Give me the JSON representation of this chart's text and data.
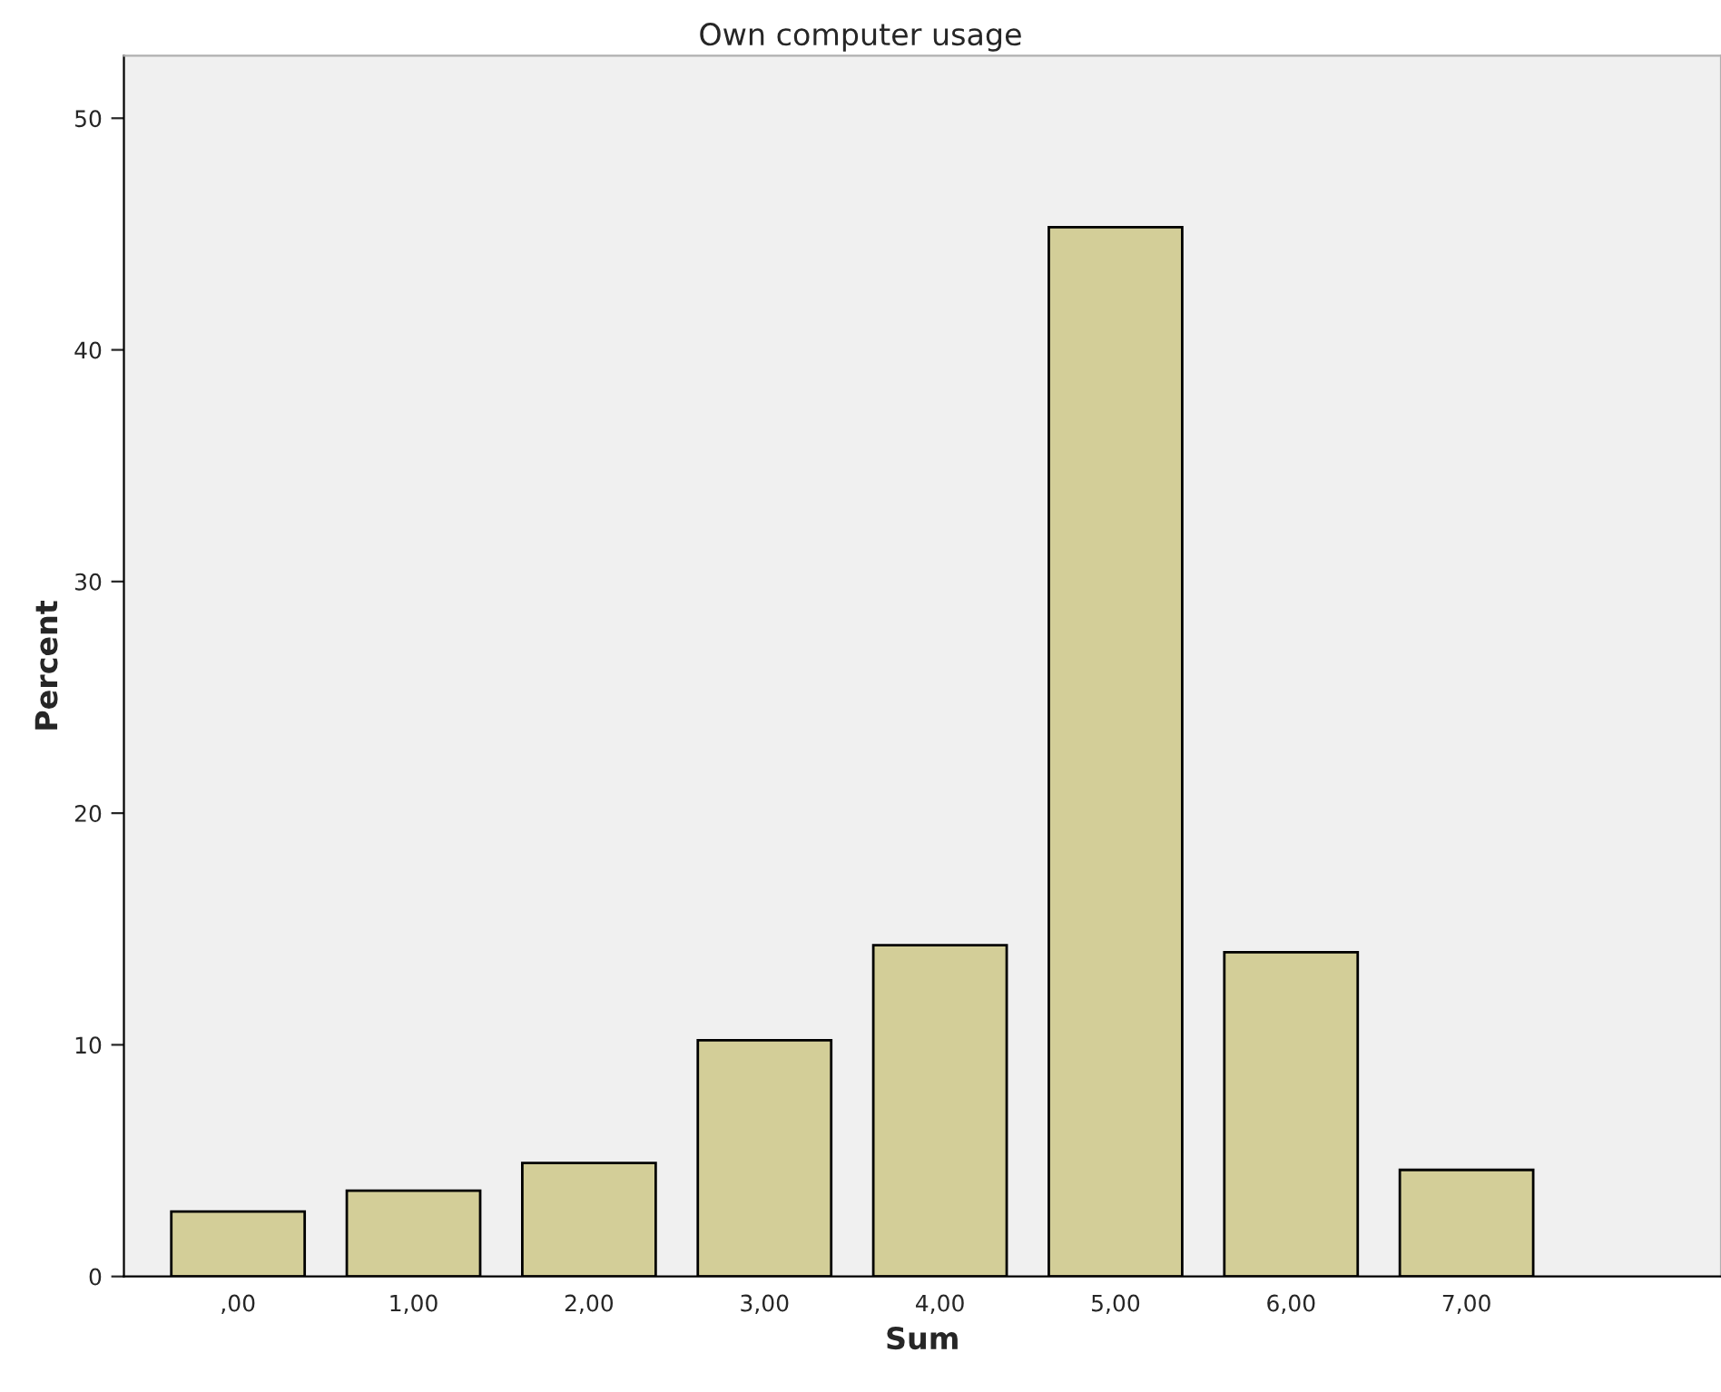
{
  "chart_data": {
    "type": "bar",
    "title": "Own computer usage",
    "xlabel": "Sum",
    "ylabel": "Percent",
    "categories": [
      ",00",
      "1,00",
      "2,00",
      "3,00",
      "4,00",
      "5,00",
      "6,00",
      "7,00"
    ],
    "values": [
      2.8,
      3.7,
      4.9,
      10.2,
      14.3,
      45.3,
      14.0,
      4.6
    ],
    "color": "#d3ce98",
    "ylim": [
      0,
      52.7
    ],
    "yticks": [
      0,
      10,
      20,
      30,
      40,
      50
    ],
    "grid": false
  }
}
